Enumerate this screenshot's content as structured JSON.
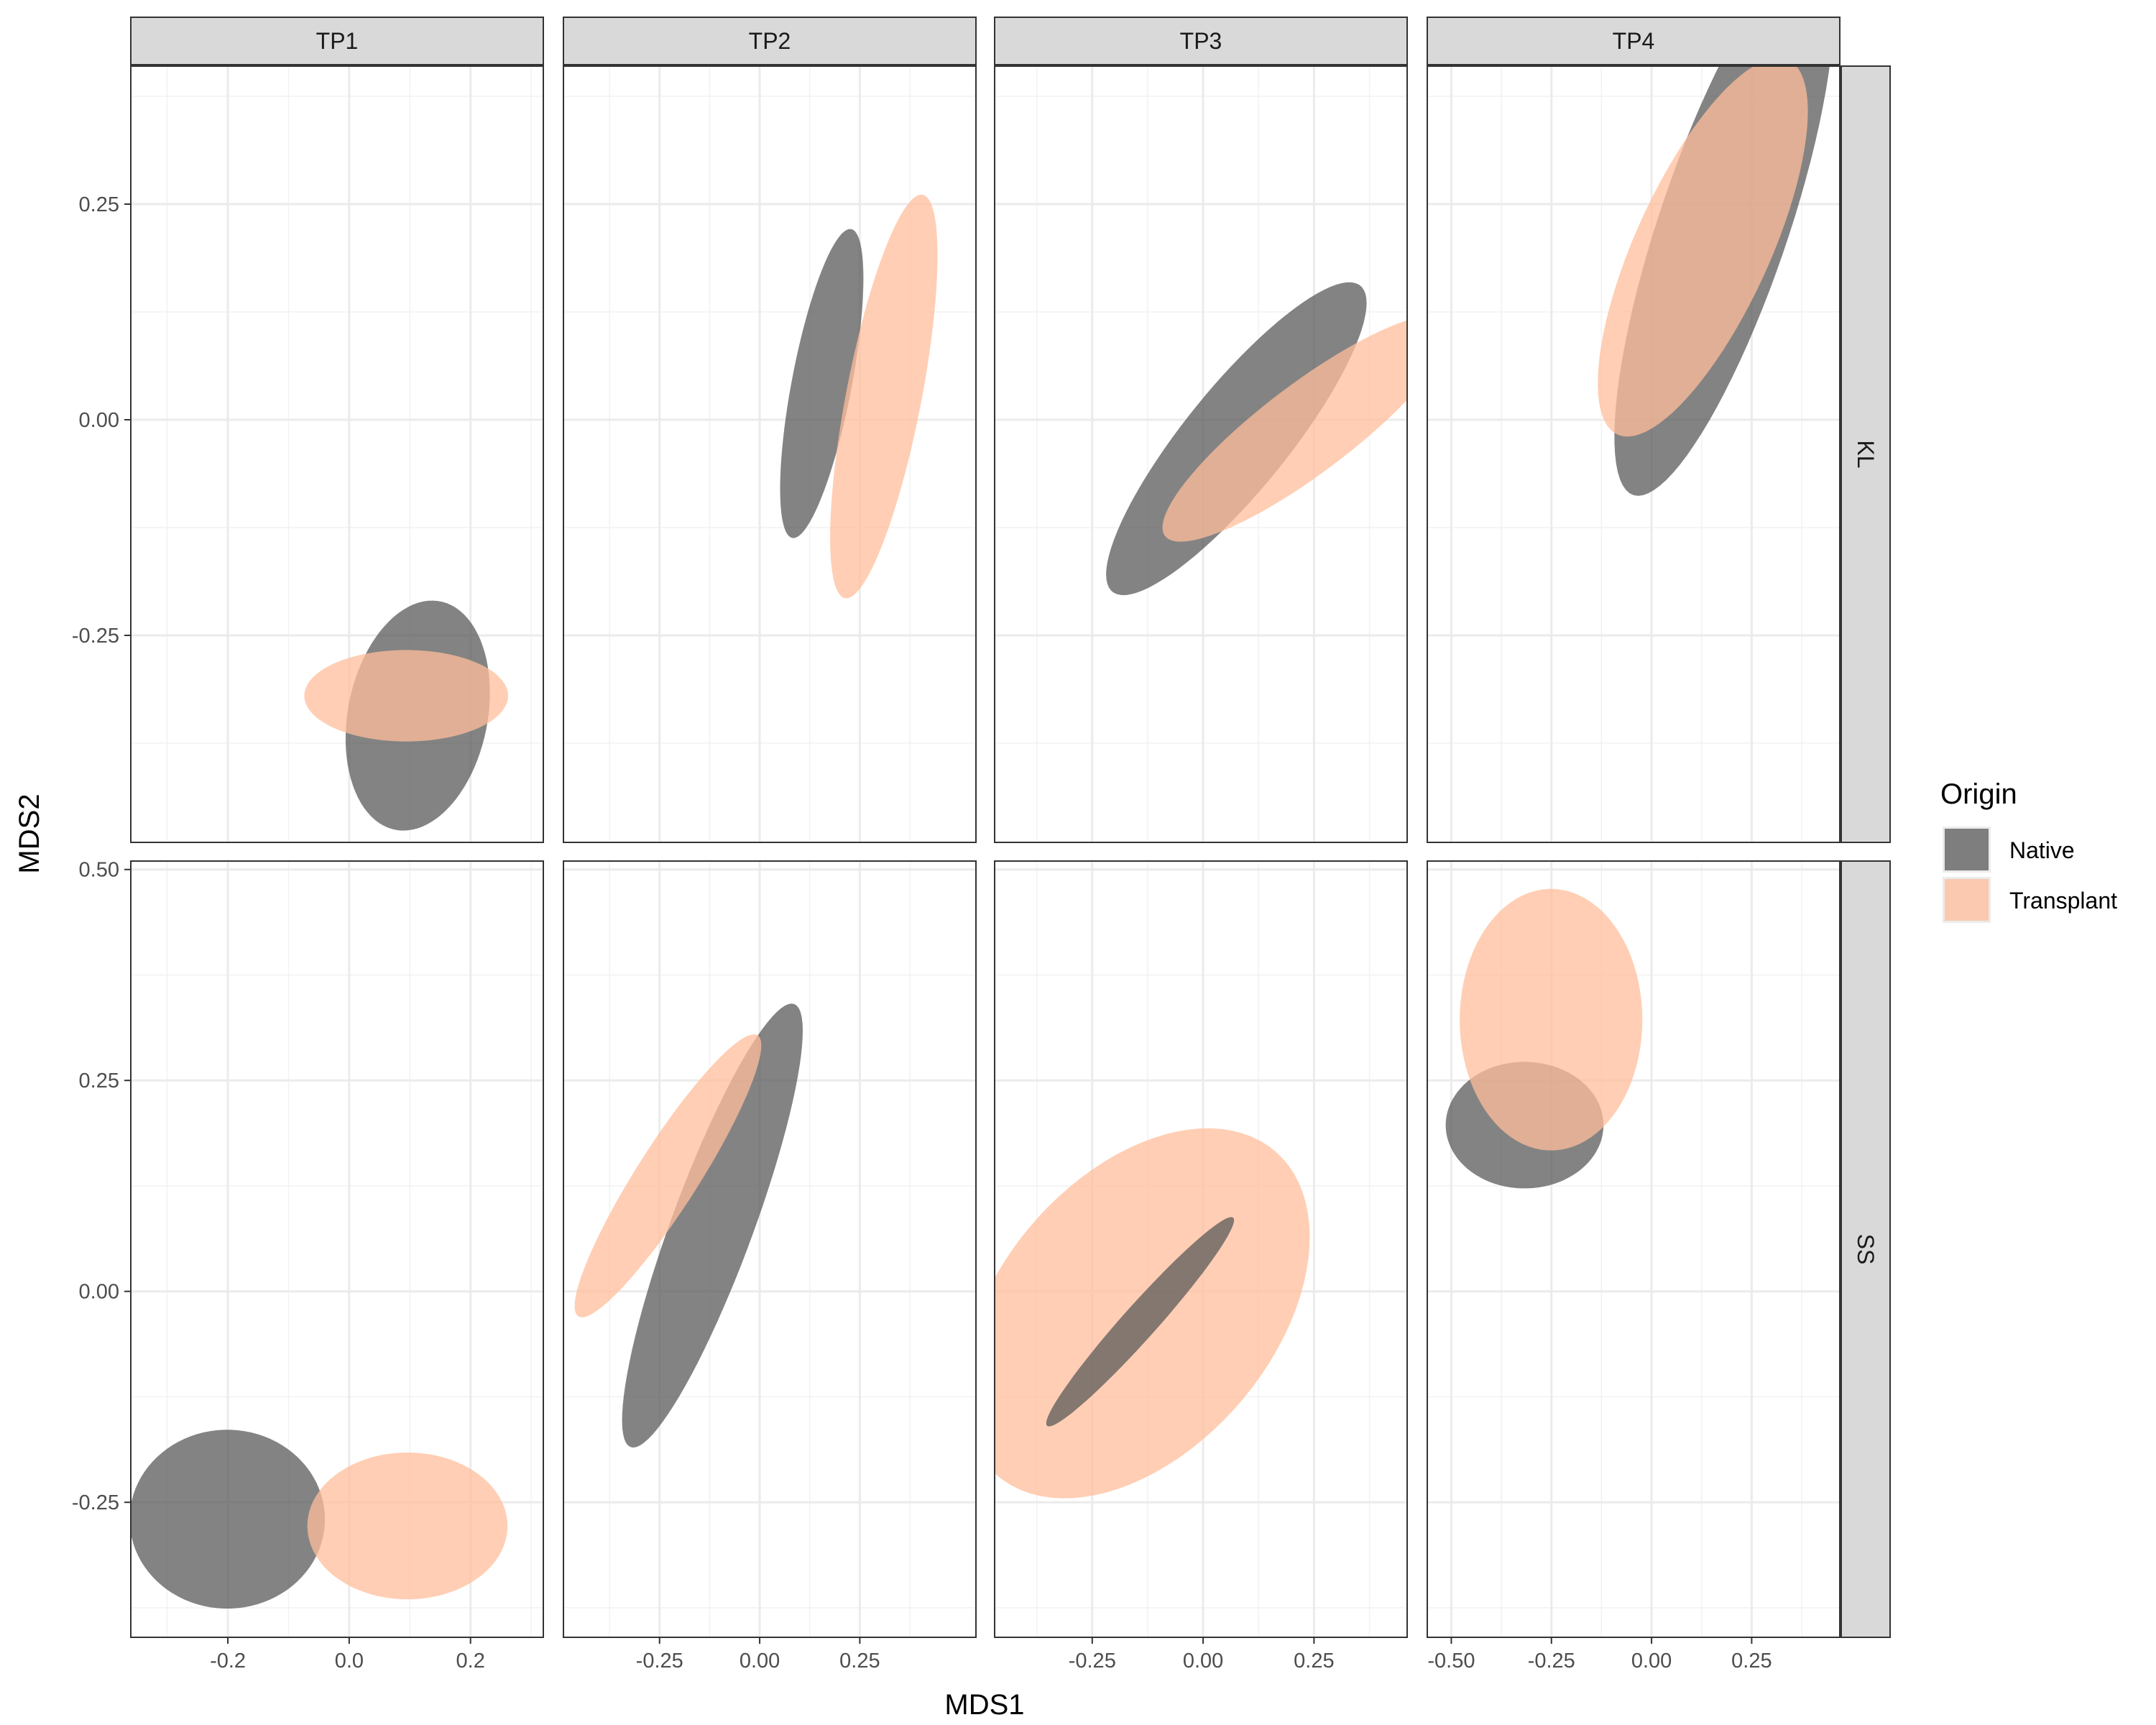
{
  "chart_data": {
    "type": "scatter",
    "geometry": "ellipse",
    "xlabel": "MDS1",
    "ylabel": "MDS2",
    "col_facets": [
      "TP1",
      "TP2",
      "TP3",
      "TP4"
    ],
    "row_facets": [
      "KL",
      "SS"
    ],
    "legend": {
      "title": "Origin",
      "placement": "right",
      "entries": [
        {
          "name": "Native",
          "color": "#595959"
        },
        {
          "name": "Transplant",
          "color": "#FFBE9B"
        }
      ]
    },
    "grid": true,
    "alpha": 0.75,
    "x_axes": [
      {
        "xlim": [
          -0.36,
          0.32
        ],
        "ticks": [
          -0.2,
          0.0,
          0.2
        ],
        "tick_labels": [
          "-0.2",
          "0.0",
          "0.2"
        ]
      },
      {
        "xlim": [
          -0.49,
          0.54
        ],
        "ticks": [
          -0.25,
          0.0,
          0.25
        ],
        "tick_labels": [
          "-0.25",
          "0.00",
          "0.25"
        ]
      },
      {
        "xlim": [
          -0.47,
          0.46
        ],
        "ticks": [
          -0.25,
          0.0,
          0.25
        ],
        "tick_labels": [
          "-0.25",
          "0.00",
          "0.25"
        ]
      },
      {
        "xlim": [
          -0.56,
          0.47
        ],
        "ticks": [
          -0.5,
          -0.25,
          0.0,
          0.25
        ],
        "tick_labels": [
          "-0.50",
          "-0.25",
          "0.00",
          "0.25"
        ]
      }
    ],
    "y_axes": [
      {
        "ylim": [
          -0.49,
          0.41
        ],
        "ticks": [
          -0.25,
          0.0,
          0.25
        ],
        "tick_labels": [
          "-0.25",
          "0.00",
          "0.25"
        ]
      },
      {
        "ylim": [
          -0.41,
          0.51
        ],
        "ticks": [
          -0.25,
          0.0,
          0.25,
          0.5
        ],
        "tick_labels": [
          "-0.25",
          "0.00",
          "0.25",
          "0.50"
        ]
      }
    ],
    "ellipses": [
      {
        "row": "KL",
        "col": "TP1",
        "series": "Native",
        "cx": 0.113,
        "cy": -0.343,
        "rx": 0.14,
        "ry": 0.111,
        "angle_deg": 60
      },
      {
        "row": "KL",
        "col": "TP1",
        "series": "Transplant",
        "cx": 0.094,
        "cy": -0.32,
        "rx": 0.168,
        "ry": 0.053,
        "angle_deg": 0
      },
      {
        "row": "KL",
        "col": "TP2",
        "series": "Native",
        "cx": 0.155,
        "cy": 0.042,
        "rx": 0.195,
        "ry": 0.07,
        "angle_deg": 65
      },
      {
        "row": "KL",
        "col": "TP2",
        "series": "Transplant",
        "cx": 0.31,
        "cy": 0.027,
        "rx": 0.255,
        "ry": 0.088,
        "angle_deg": 65
      },
      {
        "row": "KL",
        "col": "TP3",
        "series": "Native",
        "cx": 0.075,
        "cy": -0.022,
        "rx": 0.336,
        "ry": 0.079,
        "angle_deg": 30
      },
      {
        "row": "KL",
        "col": "TP3",
        "series": "Transplant",
        "cx": 0.235,
        "cy": -0.01,
        "rx": 0.347,
        "ry": 0.06,
        "angle_deg": 20
      },
      {
        "row": "KL",
        "col": "TP4",
        "series": "Native",
        "cx": 0.181,
        "cy": 0.226,
        "rx": 0.394,
        "ry": 0.136,
        "angle_deg": 50
      },
      {
        "row": "KL",
        "col": "TP4",
        "series": "Transplant",
        "cx": 0.128,
        "cy": 0.2,
        "rx": 0.318,
        "ry": 0.126,
        "angle_deg": 38
      },
      {
        "row": "SS",
        "col": "TP1",
        "series": "Native",
        "cx": -0.201,
        "cy": -0.27,
        "rx": 0.161,
        "ry": 0.106,
        "angle_deg": 0
      },
      {
        "row": "SS",
        "col": "TP1",
        "series": "Transplant",
        "cx": 0.096,
        "cy": -0.278,
        "rx": 0.165,
        "ry": 0.087,
        "angle_deg": 0
      },
      {
        "row": "SS",
        "col": "TP2",
        "series": "Native",
        "cx": -0.118,
        "cy": 0.078,
        "rx": 0.336,
        "ry": 0.085,
        "angle_deg": 50
      },
      {
        "row": "SS",
        "col": "TP2",
        "series": "Transplant",
        "cx": -0.229,
        "cy": 0.137,
        "rx": 0.282,
        "ry": 0.054,
        "angle_deg": 35
      },
      {
        "row": "SS",
        "col": "TP3",
        "series": "Transplant",
        "cx": -0.151,
        "cy": -0.026,
        "rx": 0.405,
        "ry": 0.193,
        "angle_deg": 17
      },
      {
        "row": "SS",
        "col": "TP3",
        "series": "Native",
        "cx": -0.142,
        "cy": -0.036,
        "rx": 0.244,
        "ry": 0.026,
        "angle_deg": 30
      },
      {
        "row": "SS",
        "col": "TP4",
        "series": "Native",
        "cx": -0.317,
        "cy": 0.197,
        "rx": 0.197,
        "ry": 0.075,
        "angle_deg": 0
      },
      {
        "row": "SS",
        "col": "TP4",
        "series": "Transplant",
        "cx": -0.251,
        "cy": 0.322,
        "rx": 0.228,
        "ry": 0.155,
        "angle_deg": 0
      }
    ]
  }
}
